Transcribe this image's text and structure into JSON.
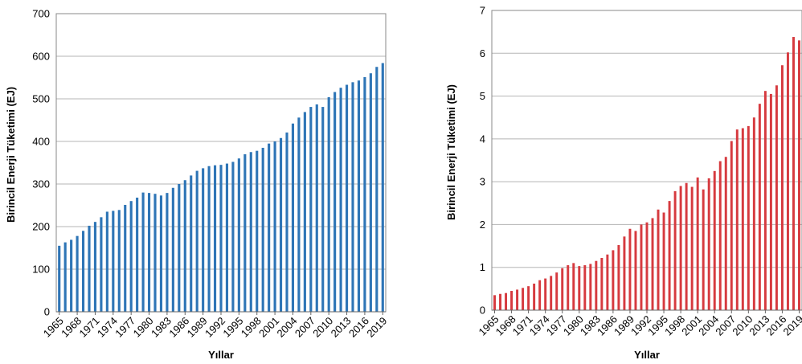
{
  "chart_data": [
    {
      "type": "bar",
      "xlabel": "Yıllar",
      "ylabel": "Birincil Enerji Tüketimi (EJ)",
      "ylim": [
        0,
        700
      ],
      "yticks": [
        0,
        100,
        200,
        300,
        400,
        500,
        600,
        700
      ],
      "grid": true,
      "color": "#2e75b6",
      "x": [
        1965,
        1966,
        1967,
        1968,
        1969,
        1970,
        1971,
        1972,
        1973,
        1974,
        1975,
        1976,
        1977,
        1978,
        1979,
        1980,
        1981,
        1982,
        1983,
        1984,
        1985,
        1986,
        1987,
        1988,
        1989,
        1990,
        1991,
        1992,
        1993,
        1994,
        1995,
        1996,
        1997,
        1998,
        1999,
        2000,
        2001,
        2002,
        2003,
        2004,
        2005,
        2006,
        2007,
        2008,
        2009,
        2010,
        2011,
        2012,
        2013,
        2014,
        2015,
        2016,
        2017,
        2018,
        2019
      ],
      "values": [
        155,
        163,
        169,
        178,
        190,
        202,
        211,
        222,
        235,
        237,
        239,
        251,
        260,
        268,
        280,
        279,
        277,
        273,
        279,
        291,
        300,
        309,
        320,
        331,
        337,
        342,
        344,
        345,
        348,
        352,
        360,
        370,
        375,
        378,
        385,
        395,
        400,
        408,
        421,
        442,
        456,
        469,
        481,
        487,
        481,
        504,
        516,
        526,
        533,
        539,
        543,
        551,
        560,
        575,
        584
      ],
      "xtick_labels": [
        "1965",
        "1968",
        "1971",
        "1974",
        "1977",
        "1980",
        "1983",
        "1986",
        "1989",
        "1992",
        "1995",
        "1998",
        "2001",
        "2004",
        "2007",
        "2010",
        "2013",
        "2016",
        "2019"
      ],
      "xtick_years": [
        1965,
        1968,
        1971,
        1974,
        1977,
        1980,
        1983,
        1986,
        1989,
        1992,
        1995,
        1998,
        2001,
        2004,
        2007,
        2010,
        2013,
        2016,
        2019
      ]
    },
    {
      "type": "bar",
      "xlabel": "Yıllar",
      "ylabel": "Birincil Enerji Tüketimi (EJ)",
      "ylim": [
        0,
        7
      ],
      "yticks": [
        0,
        1,
        2,
        3,
        4,
        5,
        6,
        7
      ],
      "grid": true,
      "color": "#d63a3f",
      "x": [
        1965,
        1966,
        1967,
        1968,
        1969,
        1970,
        1971,
        1972,
        1973,
        1974,
        1975,
        1976,
        1977,
        1978,
        1979,
        1980,
        1981,
        1982,
        1983,
        1984,
        1985,
        1986,
        1987,
        1988,
        1989,
        1990,
        1991,
        1992,
        1993,
        1994,
        1995,
        1996,
        1997,
        1998,
        1999,
        2000,
        2001,
        2002,
        2003,
        2004,
        2005,
        2006,
        2007,
        2008,
        2009,
        2010,
        2011,
        2012,
        2013,
        2014,
        2015,
        2016,
        2017,
        2018,
        2019
      ],
      "values": [
        0.35,
        0.38,
        0.4,
        0.45,
        0.48,
        0.52,
        0.56,
        0.62,
        0.7,
        0.74,
        0.8,
        0.88,
        0.98,
        1.05,
        1.1,
        1.03,
        1.05,
        1.08,
        1.15,
        1.22,
        1.3,
        1.4,
        1.52,
        1.72,
        1.9,
        1.85,
        2.0,
        2.05,
        2.15,
        2.35,
        2.28,
        2.55,
        2.78,
        2.9,
        2.97,
        2.88,
        3.1,
        2.82,
        3.08,
        3.25,
        3.48,
        3.58,
        3.95,
        4.22,
        4.25,
        4.3,
        4.5,
        4.82,
        5.12,
        5.05,
        5.25,
        5.72,
        6.02,
        6.38,
        6.3
      ],
      "xtick_labels": [
        "1965",
        "1968",
        "1971",
        "1974",
        "1977",
        "1980",
        "1983",
        "1986",
        "1989",
        "1992",
        "1995",
        "1998",
        "2001",
        "2004",
        "2007",
        "2010",
        "2013",
        "2016",
        "2019"
      ],
      "xtick_years": [
        1965,
        1968,
        1971,
        1974,
        1977,
        1980,
        1983,
        1986,
        1989,
        1992,
        1995,
        1998,
        2001,
        2004,
        2007,
        2010,
        2013,
        2016,
        2019
      ]
    }
  ]
}
